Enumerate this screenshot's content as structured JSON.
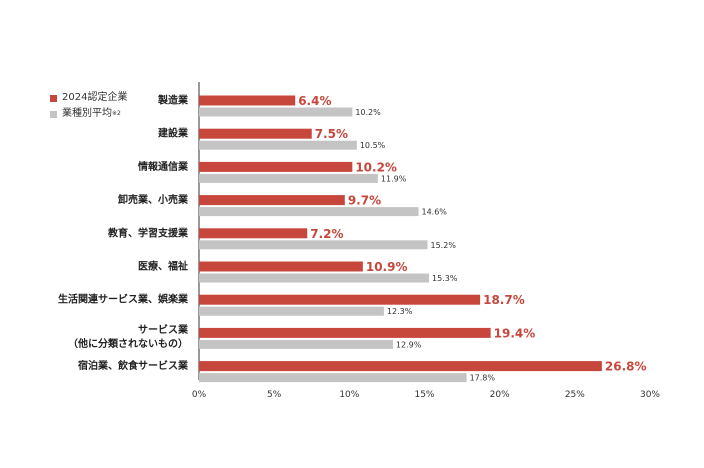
{
  "chart_data": {
    "type": "bar",
    "orientation": "horizontal",
    "categories": [
      [
        "製造業"
      ],
      [
        "建設業"
      ],
      [
        "情報通信業"
      ],
      [
        "卸売業、小売業"
      ],
      [
        "教育、学習支援業"
      ],
      [
        "医療、福祉"
      ],
      [
        "生活関連サービス業、娯楽業"
      ],
      [
        "サービス業",
        "（他に分類されないもの）"
      ],
      [
        "宿泊業、飲食サービス業"
      ]
    ],
    "series": [
      {
        "name": "2024認定企業",
        "color": "#c8473d",
        "values": [
          6.4,
          7.5,
          10.2,
          9.7,
          7.2,
          10.9,
          18.7,
          19.4,
          26.8
        ]
      },
      {
        "name": "業種別平均",
        "name_note": "※2",
        "color": "#c4c4c4",
        "values": [
          10.2,
          10.5,
          11.9,
          14.6,
          15.2,
          15.3,
          12.3,
          12.9,
          17.8
        ]
      }
    ],
    "xlim": [
      0,
      30
    ],
    "xticks": [
      "0%",
      "5%",
      "10%",
      "15%",
      "20%",
      "25%",
      "30%"
    ],
    "value_suffix": "%",
    "grid": false,
    "legend_position": "top-left"
  }
}
